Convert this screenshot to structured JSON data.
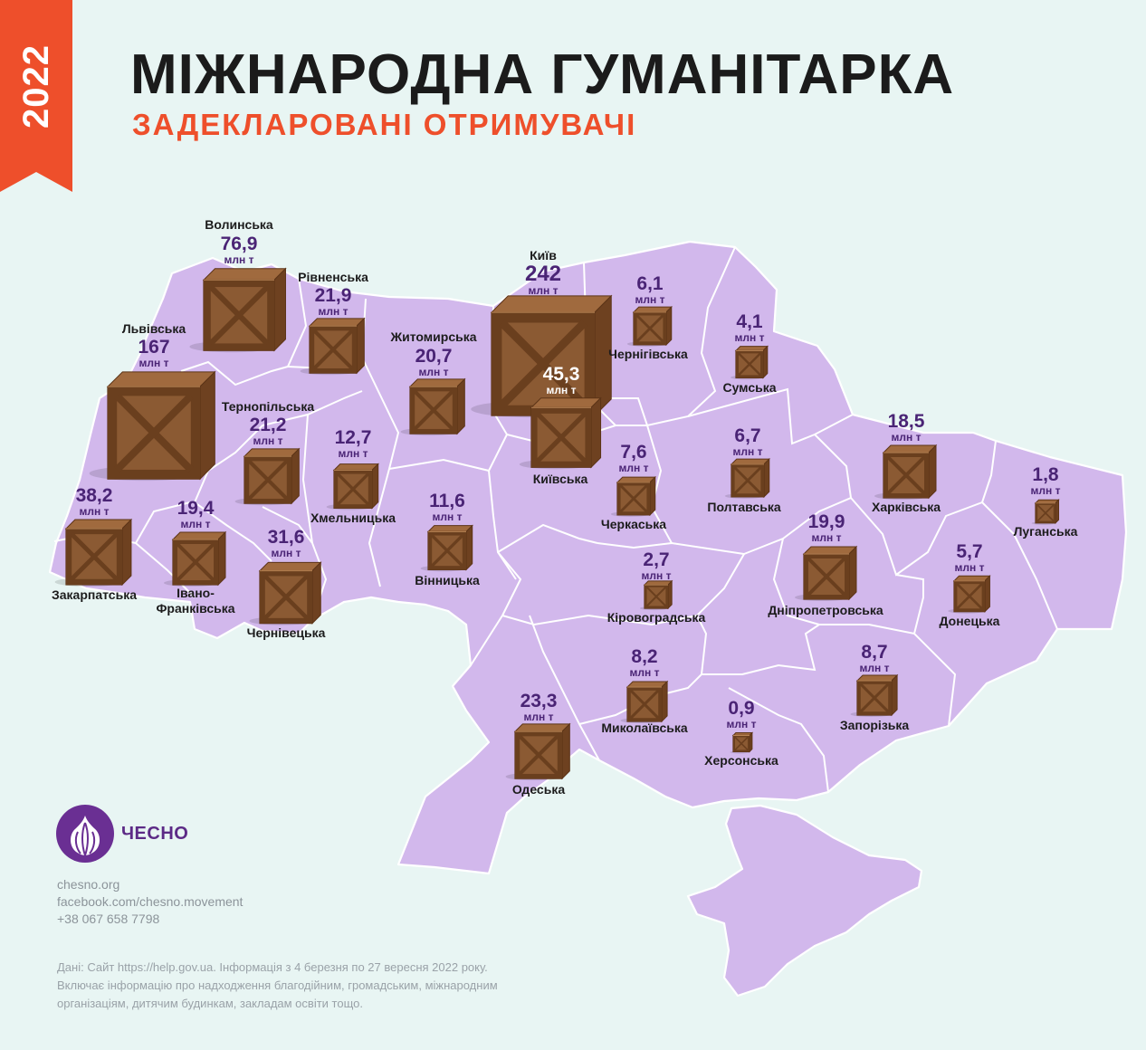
{
  "header": {
    "year": "2022",
    "title": "МІЖНАРОДНА ГУМАНІТАРКА",
    "subtitle": "ЗАДЕКЛАРОВАНІ ОТРИМУВАЧІ"
  },
  "colors": {
    "background": "#e8f5f3",
    "ribbon": "#ee4f2b",
    "region_fill": "#d2b8ec",
    "value_text": "#4a2475",
    "crate": "#8b5a33",
    "brand": "#6a2f93"
  },
  "map": {
    "unit": "млн т",
    "regions": [
      {
        "name": "Волинська",
        "value": "76,9"
      },
      {
        "name": "Рівненська",
        "value": "21,9"
      },
      {
        "name": "Львівська",
        "value": "167"
      },
      {
        "name": "Житомирська",
        "value": "20,7"
      },
      {
        "name": "Київ",
        "value": "242"
      },
      {
        "name": "Київська",
        "value": "45,3"
      },
      {
        "name": "Чернігівська",
        "value": "6,1"
      },
      {
        "name": "Сумська",
        "value": "4,1"
      },
      {
        "name": "Тернопільська",
        "value": "21,2"
      },
      {
        "name": "Хмельницька",
        "value": "12,7"
      },
      {
        "name": "Закарпатська",
        "value": "38,2"
      },
      {
        "name": "Івано-Франківська",
        "value": "19,4"
      },
      {
        "name": "Чернівецька",
        "value": "31,6"
      },
      {
        "name": "Вінницька",
        "value": "11,6"
      },
      {
        "name": "Черкаська",
        "value": "7,6"
      },
      {
        "name": "Полтавська",
        "value": "6,7"
      },
      {
        "name": "Харківська",
        "value": "18,5"
      },
      {
        "name": "Луганська",
        "value": "1,8"
      },
      {
        "name": "Кіровоградська",
        "value": "2,7"
      },
      {
        "name": "Дніпропетровська",
        "value": "19,9"
      },
      {
        "name": "Донецька",
        "value": "5,7"
      },
      {
        "name": "Одеська",
        "value": "23,3"
      },
      {
        "name": "Миколаївська",
        "value": "8,2"
      },
      {
        "name": "Херсонська",
        "value": "0,9"
      },
      {
        "name": "Запорізька",
        "value": "8,7"
      }
    ]
  },
  "logo": {
    "name": "ЧЕСНО",
    "icon": "garlic-icon"
  },
  "contacts": {
    "site": "chesno.org",
    "facebook": "facebook.com/chesno.movement",
    "phone": "+38 067 658 7798"
  },
  "footnote": {
    "line1": "Дані: Сайт https://help.gov.ua. Інформація з 4 березня по 27 вересня 2022 року.",
    "line2": "Включає інформацію про надходження благодійним, громадським, міжнародним",
    "line3": "організаціям, дитячим будинкам, закладам освіти тощо."
  }
}
